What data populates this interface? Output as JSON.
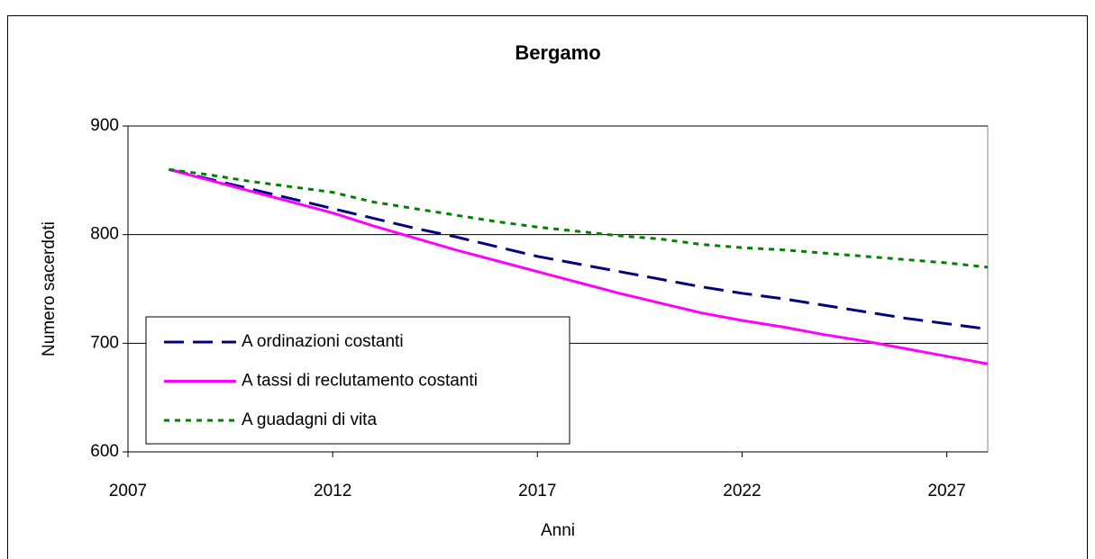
{
  "chart_data": {
    "type": "line",
    "title": "Bergamo",
    "xlabel": "Anni",
    "ylabel": "Numero sacerdoti",
    "x": [
      2008,
      2009,
      2010,
      2011,
      2012,
      2013,
      2014,
      2015,
      2016,
      2017,
      2018,
      2019,
      2020,
      2021,
      2022,
      2023,
      2024,
      2025,
      2026,
      2027,
      2028
    ],
    "series": [
      {
        "name": "A ordinazioni costanti",
        "color": "#000080",
        "style": "dashed",
        "values": [
          860,
          851,
          842,
          833,
          824,
          815,
          806,
          798,
          789,
          780,
          773,
          766,
          759,
          752,
          746,
          741,
          735,
          729,
          723,
          718,
          713
        ]
      },
      {
        "name": "A tassi di reclutamento costanti",
        "color": "#ff00ff",
        "style": "solid",
        "values": [
          860,
          850,
          840,
          830,
          820,
          808,
          797,
          786,
          776,
          766,
          756,
          746,
          737,
          728,
          721,
          715,
          708,
          702,
          695,
          688,
          681
        ]
      },
      {
        "name": "A guadagni di vita",
        "color": "#008000",
        "style": "dotted",
        "values": [
          860,
          855,
          849,
          844,
          839,
          830,
          824,
          818,
          812,
          807,
          803,
          799,
          796,
          791,
          788,
          786,
          783,
          780,
          777,
          774,
          770
        ]
      }
    ],
    "xlim": [
      2007,
      2028
    ],
    "xticks": [
      2007,
      2012,
      2017,
      2022,
      2027
    ],
    "ylim": [
      600,
      900
    ],
    "yticks": [
      600,
      700,
      800,
      900
    ],
    "grid": true,
    "legend": "lower left"
  }
}
